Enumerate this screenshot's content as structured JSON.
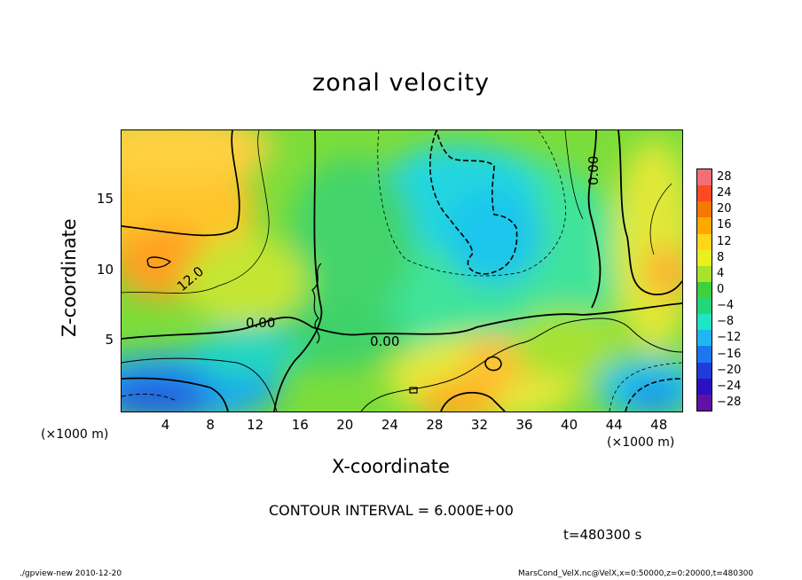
{
  "chart_data": {
    "type": "heatmap",
    "title": "zonal velocity",
    "xlabel": "X-coordinate",
    "ylabel": "Z-coordinate",
    "x_unit": "(×1000 m)",
    "x_unit_right": "(×1000 m)",
    "xlim": [
      0,
      50
    ],
    "ylim": [
      0,
      20
    ],
    "x_ticks": [
      4,
      8,
      12,
      16,
      20,
      24,
      28,
      32,
      36,
      40,
      44,
      48
    ],
    "y_ticks": [
      5,
      10,
      15
    ],
    "colorbar": {
      "levels": [
        "28",
        "24",
        "20",
        "16",
        "12",
        "8",
        "4",
        "0",
        "−4",
        "−8",
        "−12",
        "−16",
        "−20",
        "−24",
        "−28"
      ],
      "colors": [
        "#f46e78",
        "#ff4a20",
        "#f77800",
        "#ffa800",
        "#ffd61a",
        "#ecef1e",
        "#a8e32a",
        "#3dd13d",
        "#22d67a",
        "#1ee6c4",
        "#1fb6f3",
        "#1b78f0",
        "#203bd8",
        "#2b10c0",
        "#6012a8"
      ]
    },
    "contour_labels": [
      "12.0",
      "0.00",
      "0.00",
      "0.00"
    ],
    "contour_interval_text": "CONTOUR INTERVAL = 6.000E+00",
    "time_text": "t=480300 s"
  },
  "footer": {
    "left": "./gpview-new  2010-12-20",
    "right": "MarsCond_VelX.nc@VelX,x=0:50000,z=0:20000,t=480300"
  }
}
